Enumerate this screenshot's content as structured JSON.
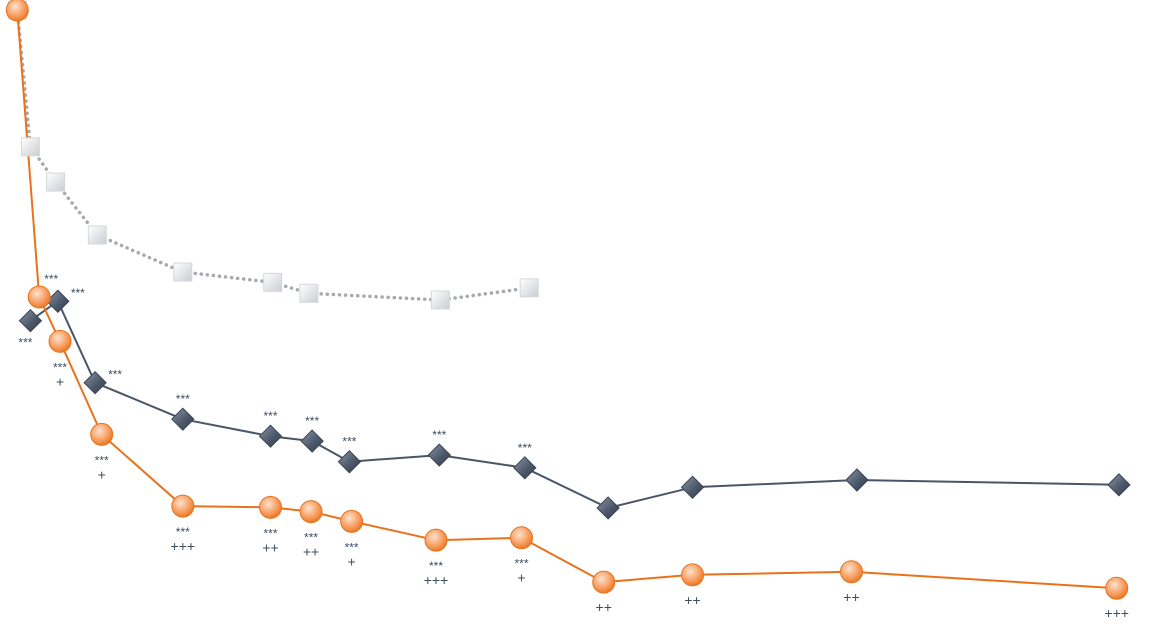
{
  "chart_data": {
    "type": "line",
    "title": "",
    "xlabel": "",
    "ylabel": "",
    "xlim": [
      0,
      104
    ],
    "ylim": [
      0,
      100
    ],
    "grid": false,
    "legend": "none",
    "series": [
      {
        "style": "dotted-square",
        "color": "#a6a9ad",
        "points": [
          {
            "x": 0.3,
            "y": 100
          },
          {
            "x": 1.5,
            "y": 77.5
          },
          {
            "x": 3.8,
            "y": 71.7
          },
          {
            "x": 7.6,
            "y": 63.0
          },
          {
            "x": 15.4,
            "y": 56.9
          },
          {
            "x": 23.6,
            "y": 55.2
          },
          {
            "x": 26.9,
            "y": 53.4
          },
          {
            "x": 38.9,
            "y": 52.3
          },
          {
            "x": 47.0,
            "y": 54.3
          }
        ]
      },
      {
        "style": "solid-diamond",
        "color": "#4a5667",
        "points": [
          {
            "x": 1.5,
            "y": 48.9,
            "stars": "***",
            "plus": "",
            "star_pos": "below"
          },
          {
            "x": 4.0,
            "y": 52.1,
            "stars": "***",
            "plus": "",
            "star_pos": "right"
          },
          {
            "x": 7.4,
            "y": 38.7,
            "stars": "***",
            "plus": "",
            "star_pos": "right"
          },
          {
            "x": 15.4,
            "y": 32.7,
            "stars": "***",
            "plus": "",
            "star_pos": "above"
          },
          {
            "x": 23.4,
            "y": 29.9,
            "stars": "***",
            "plus": "",
            "star_pos": "above"
          },
          {
            "x": 27.2,
            "y": 29.1,
            "stars": "***",
            "plus": "",
            "star_pos": "above"
          },
          {
            "x": 30.6,
            "y": 25.7,
            "stars": "***",
            "plus": "",
            "star_pos": "above"
          },
          {
            "x": 38.8,
            "y": 26.8,
            "stars": "***",
            "plus": "",
            "star_pos": "above"
          },
          {
            "x": 46.6,
            "y": 24.7,
            "stars": "***",
            "plus": "",
            "star_pos": "above"
          },
          {
            "x": 54.2,
            "y": 18.1,
            "stars": "",
            "plus": ""
          },
          {
            "x": 61.9,
            "y": 21.5,
            "stars": "",
            "plus": ""
          },
          {
            "x": 76.9,
            "y": 22.7,
            "stars": "",
            "plus": ""
          },
          {
            "x": 100.8,
            "y": 21.9,
            "stars": "",
            "plus": ""
          }
        ]
      },
      {
        "style": "solid-circle",
        "color": "#e8721c",
        "points": [
          {
            "x": 0.3,
            "y": 100,
            "stars": "",
            "plus": ""
          },
          {
            "x": 2.3,
            "y": 52.8,
            "stars": "***",
            "plus": "",
            "star_pos": "right-up"
          },
          {
            "x": 4.2,
            "y": 45.5,
            "stars": "***",
            "plus": "+",
            "star_pos": "below"
          },
          {
            "x": 8.0,
            "y": 30.2,
            "stars": "***",
            "plus": "+",
            "star_pos": "below"
          },
          {
            "x": 15.4,
            "y": 18.4,
            "stars": "***",
            "plus": "+++",
            "star_pos": "below"
          },
          {
            "x": 23.4,
            "y": 18.2,
            "stars": "***",
            "plus": "++",
            "star_pos": "below"
          },
          {
            "x": 27.1,
            "y": 17.5,
            "stars": "***",
            "plus": "++",
            "star_pos": "below"
          },
          {
            "x": 30.8,
            "y": 15.9,
            "stars": "***",
            "plus": "+",
            "star_pos": "below"
          },
          {
            "x": 38.5,
            "y": 12.8,
            "stars": "***",
            "plus": "+++",
            "star_pos": "below"
          },
          {
            "x": 46.3,
            "y": 13.2,
            "stars": "***",
            "plus": "+",
            "star_pos": "below"
          },
          {
            "x": 53.8,
            "y": 5.9,
            "stars": "",
            "plus": "++",
            "star_pos": "below"
          },
          {
            "x": 61.9,
            "y": 7.1,
            "stars": "",
            "plus": "++",
            "star_pos": "below"
          },
          {
            "x": 76.4,
            "y": 7.6,
            "stars": "",
            "plus": "++",
            "star_pos": "below"
          },
          {
            "x": 100.6,
            "y": 4.9,
            "stars": "",
            "plus": "+++",
            "star_pos": "below"
          }
        ]
      }
    ]
  }
}
